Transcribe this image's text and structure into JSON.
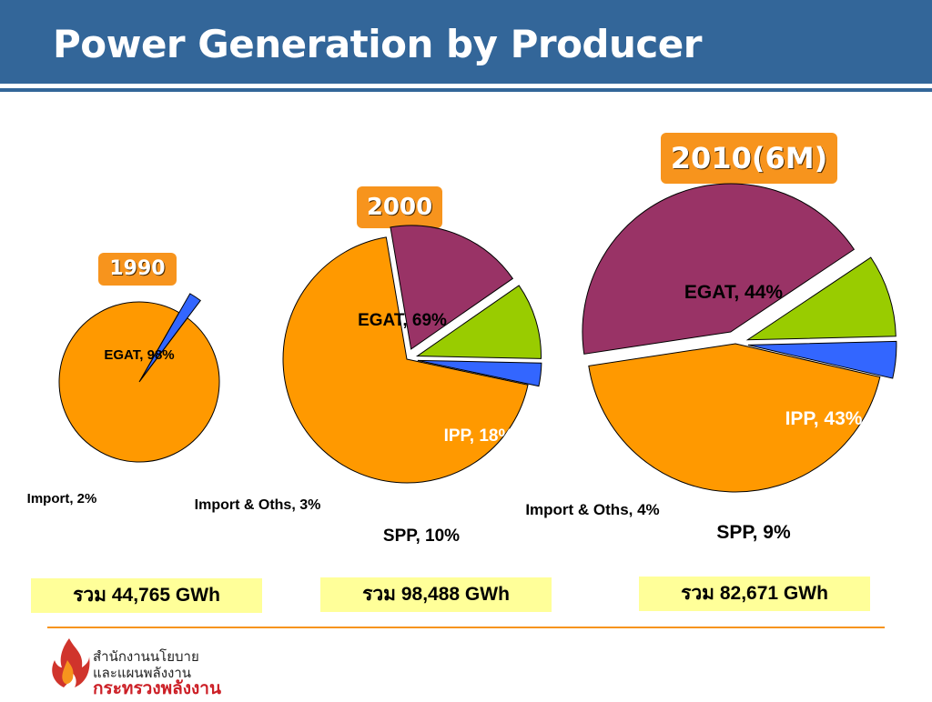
{
  "page": {
    "title": "Power Generation by Producer",
    "logo_line1": "สำนักงานนโยบาย",
    "logo_line2": "และแผนพลังงาน",
    "logo_line3": "กระทรวงพลังงาน"
  },
  "colors": {
    "header": "#336699",
    "badge": "#f7941d",
    "egat": "#ff9900",
    "ipp": "#993366",
    "spp": "#99cc00",
    "import": "#3366ff",
    "total_box": "#ffff99"
  },
  "chart_data": [
    {
      "type": "pie",
      "year": "1990",
      "total": "รวม 44,765 GWh",
      "slices": [
        {
          "label": "EGAT, 98%",
          "value": 98
        },
        {
          "label": "Import, 2%",
          "value": 2
        }
      ]
    },
    {
      "type": "pie",
      "year": "2000",
      "total": "รวม 98,488 GWh",
      "slices": [
        {
          "label": "EGAT, 69%",
          "value": 69
        },
        {
          "label": "IPP, 18%",
          "value": 18
        },
        {
          "label": "SPP, 10%",
          "value": 10
        },
        {
          "label": "Import & Oths, 3%",
          "value": 3
        }
      ]
    },
    {
      "type": "pie",
      "year": "2010(6M)",
      "total": "รวม 82,671 GWh",
      "slices": [
        {
          "label": "EGAT, 44%",
          "value": 44
        },
        {
          "label": "IPP, 43%",
          "value": 43
        },
        {
          "label": "SPP, 9%",
          "value": 9
        },
        {
          "label": "Import & Oths, 4%",
          "value": 4
        }
      ]
    }
  ]
}
